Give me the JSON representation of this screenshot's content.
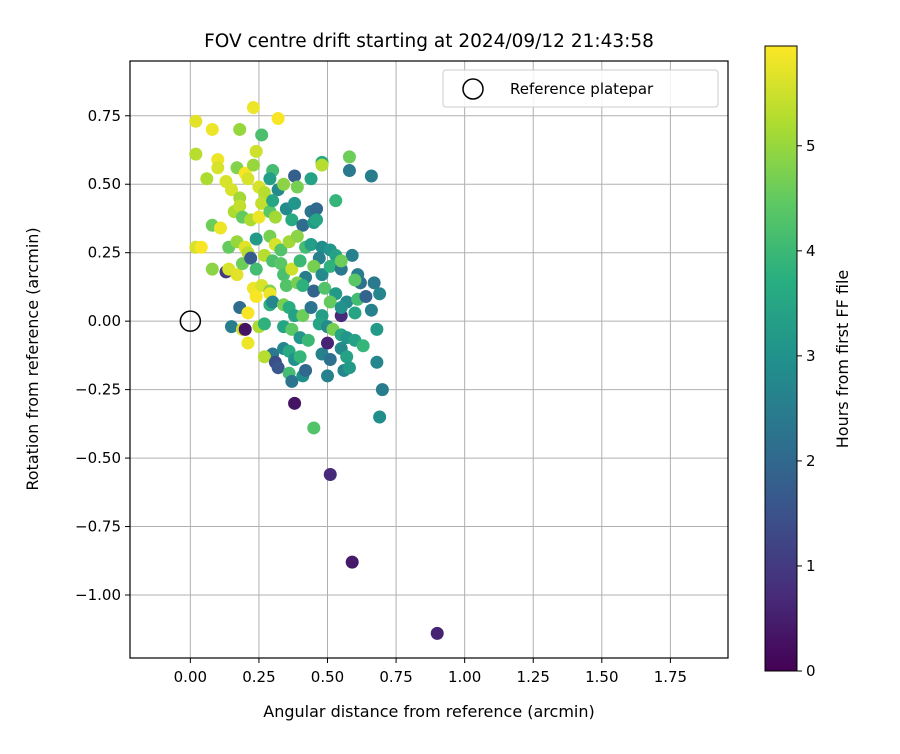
{
  "chart_data": {
    "type": "scatter",
    "title": "FOV centre drift starting at 2024/09/12 21:43:58",
    "xlabel": "Angular distance from reference (arcmin)",
    "ylabel": "Rotation from reference (arcmin)",
    "xlim": [
      -0.22,
      1.96
    ],
    "ylim": [
      -1.23,
      0.95
    ],
    "xticks": [
      0.0,
      0.25,
      0.5,
      0.75,
      1.0,
      1.25,
      1.5,
      1.75
    ],
    "xtick_labels": [
      "0.00",
      "0.25",
      "0.50",
      "0.75",
      "1.00",
      "1.25",
      "1.50",
      "1.75"
    ],
    "yticks": [
      0.75,
      0.5,
      0.25,
      0.0,
      -0.25,
      -0.5,
      -0.75,
      -1.0
    ],
    "ytick_labels": [
      "0.75",
      "0.50",
      "0.25",
      "0.00",
      "−0.25",
      "−0.50",
      "−0.75",
      "−1.00"
    ],
    "grid": true,
    "legend": {
      "placement": "top-right",
      "entries": [
        "Reference platepar"
      ]
    },
    "reference_point": {
      "x": 0.0,
      "y": 0.0,
      "label": "Reference platepar"
    },
    "colorbar": {
      "label": "Hours from first FF file",
      "colormap": "viridis",
      "range": [
        0,
        5.95
      ],
      "ticks": [
        0,
        1,
        2,
        3,
        4,
        5
      ],
      "tick_labels": [
        "0",
        "1",
        "2",
        "3",
        "4",
        "5"
      ]
    },
    "points": [
      {
        "x": 0.02,
        "y": 0.73,
        "h": 5.7
      },
      {
        "x": 0.08,
        "y": 0.7,
        "h": 5.8
      },
      {
        "x": 0.18,
        "y": 0.7,
        "h": 5.0
      },
      {
        "x": 0.23,
        "y": 0.78,
        "h": 5.8
      },
      {
        "x": 0.32,
        "y": 0.74,
        "h": 5.9
      },
      {
        "x": 0.26,
        "y": 0.68,
        "h": 4.2
      },
      {
        "x": 0.02,
        "y": 0.61,
        "h": 5.3
      },
      {
        "x": 0.1,
        "y": 0.59,
        "h": 5.8
      },
      {
        "x": 0.1,
        "y": 0.56,
        "h": 5.6
      },
      {
        "x": 0.06,
        "y": 0.52,
        "h": 5.2
      },
      {
        "x": 0.13,
        "y": 0.51,
        "h": 5.6
      },
      {
        "x": 0.17,
        "y": 0.56,
        "h": 4.8
      },
      {
        "x": 0.2,
        "y": 0.54,
        "h": 5.9
      },
      {
        "x": 0.23,
        "y": 0.57,
        "h": 5.0
      },
      {
        "x": 0.24,
        "y": 0.62,
        "h": 5.5
      },
      {
        "x": 0.3,
        "y": 0.55,
        "h": 4.1
      },
      {
        "x": 0.29,
        "y": 0.52,
        "h": 3.3
      },
      {
        "x": 0.15,
        "y": 0.48,
        "h": 5.6
      },
      {
        "x": 0.18,
        "y": 0.45,
        "h": 5.1
      },
      {
        "x": 0.21,
        "y": 0.52,
        "h": 5.6
      },
      {
        "x": 0.25,
        "y": 0.49,
        "h": 5.6
      },
      {
        "x": 0.27,
        "y": 0.47,
        "h": 5.3
      },
      {
        "x": 0.32,
        "y": 0.48,
        "h": 2.8
      },
      {
        "x": 0.34,
        "y": 0.5,
        "h": 4.9
      },
      {
        "x": 0.38,
        "y": 0.53,
        "h": 1.8
      },
      {
        "x": 0.39,
        "y": 0.49,
        "h": 4.7
      },
      {
        "x": 0.44,
        "y": 0.52,
        "h": 3.4
      },
      {
        "x": 0.48,
        "y": 0.58,
        "h": 3.6
      },
      {
        "x": 0.48,
        "y": 0.57,
        "h": 5.3
      },
      {
        "x": 0.58,
        "y": 0.6,
        "h": 4.6
      },
      {
        "x": 0.58,
        "y": 0.55,
        "h": 2.4
      },
      {
        "x": 0.66,
        "y": 0.53,
        "h": 2.5
      },
      {
        "x": 0.53,
        "y": 0.44,
        "h": 3.9
      },
      {
        "x": 0.08,
        "y": 0.35,
        "h": 4.6
      },
      {
        "x": 0.11,
        "y": 0.34,
        "h": 5.8
      },
      {
        "x": 0.16,
        "y": 0.4,
        "h": 5.2
      },
      {
        "x": 0.18,
        "y": 0.42,
        "h": 5.4
      },
      {
        "x": 0.19,
        "y": 0.38,
        "h": 4.5
      },
      {
        "x": 0.22,
        "y": 0.37,
        "h": 5.2
      },
      {
        "x": 0.25,
        "y": 0.38,
        "h": 5.8
      },
      {
        "x": 0.26,
        "y": 0.43,
        "h": 5.4
      },
      {
        "x": 0.29,
        "y": 0.4,
        "h": 4.4
      },
      {
        "x": 0.31,
        "y": 0.38,
        "h": 5.1
      },
      {
        "x": 0.3,
        "y": 0.44,
        "h": 3.5
      },
      {
        "x": 0.35,
        "y": 0.41,
        "h": 2.8
      },
      {
        "x": 0.38,
        "y": 0.43,
        "h": 3.1
      },
      {
        "x": 0.37,
        "y": 0.37,
        "h": 3.6
      },
      {
        "x": 0.41,
        "y": 0.35,
        "h": 2.1
      },
      {
        "x": 0.44,
        "y": 0.4,
        "h": 2.3
      },
      {
        "x": 0.46,
        "y": 0.41,
        "h": 2.0
      },
      {
        "x": 0.45,
        "y": 0.36,
        "h": 3.2
      },
      {
        "x": 0.46,
        "y": 0.37,
        "h": 3.5
      },
      {
        "x": 0.02,
        "y": 0.27,
        "h": 5.6
      },
      {
        "x": 0.04,
        "y": 0.27,
        "h": 5.9
      },
      {
        "x": 0.14,
        "y": 0.27,
        "h": 4.5
      },
      {
        "x": 0.17,
        "y": 0.29,
        "h": 5.0
      },
      {
        "x": 0.2,
        "y": 0.27,
        "h": 5.7
      },
      {
        "x": 0.21,
        "y": 0.25,
        "h": 5.3
      },
      {
        "x": 0.24,
        "y": 0.3,
        "h": 3.2
      },
      {
        "x": 0.27,
        "y": 0.24,
        "h": 5.3
      },
      {
        "x": 0.29,
        "y": 0.31,
        "h": 4.7
      },
      {
        "x": 0.31,
        "y": 0.28,
        "h": 5.6
      },
      {
        "x": 0.33,
        "y": 0.26,
        "h": 4.3
      },
      {
        "x": 0.36,
        "y": 0.29,
        "h": 5.1
      },
      {
        "x": 0.39,
        "y": 0.31,
        "h": 4.9
      },
      {
        "x": 0.42,
        "y": 0.27,
        "h": 4.1
      },
      {
        "x": 0.44,
        "y": 0.28,
        "h": 3.3
      },
      {
        "x": 0.48,
        "y": 0.27,
        "h": 2.9
      },
      {
        "x": 0.51,
        "y": 0.26,
        "h": 3.1
      },
      {
        "x": 0.47,
        "y": 0.23,
        "h": 2.6
      },
      {
        "x": 0.53,
        "y": 0.24,
        "h": 3.4
      },
      {
        "x": 0.59,
        "y": 0.24,
        "h": 2.6
      },
      {
        "x": 0.08,
        "y": 0.19,
        "h": 4.9
      },
      {
        "x": 0.13,
        "y": 0.18,
        "h": 1.0
      },
      {
        "x": 0.14,
        "y": 0.19,
        "h": 5.6
      },
      {
        "x": 0.17,
        "y": 0.17,
        "h": 5.7
      },
      {
        "x": 0.19,
        "y": 0.21,
        "h": 4.6
      },
      {
        "x": 0.22,
        "y": 0.23,
        "h": 1.7
      },
      {
        "x": 0.24,
        "y": 0.19,
        "h": 4.1
      },
      {
        "x": 0.3,
        "y": 0.22,
        "h": 4.2
      },
      {
        "x": 0.33,
        "y": 0.21,
        "h": 4.4
      },
      {
        "x": 0.34,
        "y": 0.17,
        "h": 4.2
      },
      {
        "x": 0.37,
        "y": 0.19,
        "h": 5.5
      },
      {
        "x": 0.4,
        "y": 0.22,
        "h": 4.0
      },
      {
        "x": 0.42,
        "y": 0.16,
        "h": 2.5
      },
      {
        "x": 0.45,
        "y": 0.2,
        "h": 4.7
      },
      {
        "x": 0.48,
        "y": 0.17,
        "h": 2.8
      },
      {
        "x": 0.51,
        "y": 0.2,
        "h": 3.8
      },
      {
        "x": 0.55,
        "y": 0.19,
        "h": 2.4
      },
      {
        "x": 0.55,
        "y": 0.22,
        "h": 4.6
      },
      {
        "x": 0.61,
        "y": 0.17,
        "h": 2.5
      },
      {
        "x": 0.62,
        "y": 0.14,
        "h": 2.2
      },
      {
        "x": 0.67,
        "y": 0.14,
        "h": 2.4
      },
      {
        "x": 0.6,
        "y": 0.15,
        "h": 4.4
      },
      {
        "x": 0.23,
        "y": 0.12,
        "h": 5.8
      },
      {
        "x": 0.24,
        "y": 0.09,
        "h": 5.9
      },
      {
        "x": 0.26,
        "y": 0.13,
        "h": 5.6
      },
      {
        "x": 0.29,
        "y": 0.11,
        "h": 4.8
      },
      {
        "x": 0.29,
        "y": 0.1,
        "h": 5.8
      },
      {
        "x": 0.35,
        "y": 0.13,
        "h": 4.3
      },
      {
        "x": 0.39,
        "y": 0.14,
        "h": 4.7
      },
      {
        "x": 0.41,
        "y": 0.13,
        "h": 3.8
      },
      {
        "x": 0.45,
        "y": 0.11,
        "h": 1.9
      },
      {
        "x": 0.49,
        "y": 0.12,
        "h": 4.3
      },
      {
        "x": 0.53,
        "y": 0.1,
        "h": 3.2
      },
      {
        "x": 0.57,
        "y": 0.07,
        "h": 2.8
      },
      {
        "x": 0.61,
        "y": 0.08,
        "h": 4.1
      },
      {
        "x": 0.64,
        "y": 0.09,
        "h": 1.9
      },
      {
        "x": 0.69,
        "y": 0.1,
        "h": 2.7
      },
      {
        "x": 0.18,
        "y": 0.05,
        "h": 2.1
      },
      {
        "x": 0.21,
        "y": 0.03,
        "h": 5.9
      },
      {
        "x": 0.29,
        "y": 0.06,
        "h": 3.8
      },
      {
        "x": 0.3,
        "y": 0.07,
        "h": 2.7
      },
      {
        "x": 0.34,
        "y": 0.06,
        "h": 4.7
      },
      {
        "x": 0.36,
        "y": 0.05,
        "h": 3.7
      },
      {
        "x": 0.38,
        "y": 0.02,
        "h": 3.4
      },
      {
        "x": 0.41,
        "y": 0.02,
        "h": 4.6
      },
      {
        "x": 0.44,
        "y": 0.05,
        "h": 2.3
      },
      {
        "x": 0.48,
        "y": 0.02,
        "h": 3.3
      },
      {
        "x": 0.51,
        "y": 0.07,
        "h": 4.5
      },
      {
        "x": 0.55,
        "y": 0.02,
        "h": 0.7
      },
      {
        "x": 0.55,
        "y": 0.05,
        "h": 3.0
      },
      {
        "x": 0.6,
        "y": 0.03,
        "h": 3.5
      },
      {
        "x": 0.66,
        "y": 0.04,
        "h": 2.6
      },
      {
        "x": 0.15,
        "y": -0.02,
        "h": 2.5
      },
      {
        "x": 0.19,
        "y": -0.03,
        "h": 5.5
      },
      {
        "x": 0.2,
        "y": -0.03,
        "h": 0.3
      },
      {
        "x": 0.25,
        "y": -0.02,
        "h": 5.2
      },
      {
        "x": 0.27,
        "y": -0.01,
        "h": 3.8
      },
      {
        "x": 0.34,
        "y": -0.02,
        "h": 3.5
      },
      {
        "x": 0.37,
        "y": -0.03,
        "h": 4.4
      },
      {
        "x": 0.4,
        "y": -0.06,
        "h": 3.1
      },
      {
        "x": 0.43,
        "y": -0.07,
        "h": 4.0
      },
      {
        "x": 0.47,
        "y": -0.01,
        "h": 3.5
      },
      {
        "x": 0.5,
        "y": -0.02,
        "h": 2.8
      },
      {
        "x": 0.52,
        "y": -0.03,
        "h": 4.7
      },
      {
        "x": 0.55,
        "y": -0.05,
        "h": 3.5
      },
      {
        "x": 0.57,
        "y": -0.06,
        "h": 3.1
      },
      {
        "x": 0.6,
        "y": -0.07,
        "h": 3.4
      },
      {
        "x": 0.63,
        "y": -0.09,
        "h": 3.9
      },
      {
        "x": 0.68,
        "y": -0.03,
        "h": 3.2
      },
      {
        "x": 0.21,
        "y": -0.08,
        "h": 5.8
      },
      {
        "x": 0.3,
        "y": -0.12,
        "h": 2.4
      },
      {
        "x": 0.34,
        "y": -0.1,
        "h": 2.7
      },
      {
        "x": 0.36,
        "y": -0.11,
        "h": 3.6
      },
      {
        "x": 0.38,
        "y": -0.14,
        "h": 3.0
      },
      {
        "x": 0.4,
        "y": -0.13,
        "h": 3.9
      },
      {
        "x": 0.27,
        "y": -0.13,
        "h": 5.3
      },
      {
        "x": 0.31,
        "y": -0.15,
        "h": 1.4
      },
      {
        "x": 0.48,
        "y": -0.12,
        "h": 2.6
      },
      {
        "x": 0.5,
        "y": -0.08,
        "h": 0.6
      },
      {
        "x": 0.51,
        "y": -0.14,
        "h": 2.2
      },
      {
        "x": 0.55,
        "y": -0.1,
        "h": 2.8
      },
      {
        "x": 0.57,
        "y": -0.13,
        "h": 3.4
      },
      {
        "x": 0.32,
        "y": -0.17,
        "h": 1.6
      },
      {
        "x": 0.36,
        "y": -0.19,
        "h": 4.1
      },
      {
        "x": 0.37,
        "y": -0.22,
        "h": 2.3
      },
      {
        "x": 0.41,
        "y": -0.2,
        "h": 2.9
      },
      {
        "x": 0.42,
        "y": -0.18,
        "h": 2.0
      },
      {
        "x": 0.5,
        "y": -0.2,
        "h": 2.6
      },
      {
        "x": 0.56,
        "y": -0.18,
        "h": 2.7
      },
      {
        "x": 0.58,
        "y": -0.17,
        "h": 3.2
      },
      {
        "x": 0.68,
        "y": -0.15,
        "h": 2.7
      },
      {
        "x": 0.7,
        "y": -0.25,
        "h": 2.5
      },
      {
        "x": 0.38,
        "y": -0.3,
        "h": 0.3
      },
      {
        "x": 0.69,
        "y": -0.35,
        "h": 2.9
      },
      {
        "x": 0.45,
        "y": -0.39,
        "h": 4.3
      },
      {
        "x": 0.51,
        "y": -0.56,
        "h": 0.7
      },
      {
        "x": 0.59,
        "y": -0.88,
        "h": 0.4
      },
      {
        "x": 0.9,
        "y": -1.14,
        "h": 0.6
      }
    ]
  }
}
